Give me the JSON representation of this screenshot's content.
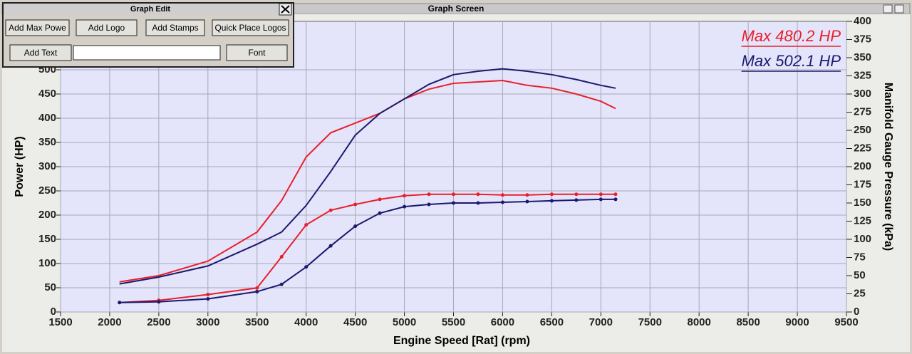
{
  "window": {
    "title": "Graph Screen"
  },
  "dialog": {
    "title": "Graph Edit",
    "buttons": [
      "Add Max Powe",
      "Add Logo",
      "Add Stamps",
      "Quick Place Logos",
      "Add Text",
      "Font"
    ]
  },
  "chart_data": {
    "type": "line",
    "x_label": "Engine Speed [Rat] (rpm)",
    "y_label": "Power (HP)",
    "y2_label": "Manifold Gauge Pressure (kPa)",
    "x": [
      2100,
      2500,
      3000,
      3500,
      3750,
      4000,
      4250,
      4500,
      4750,
      5000,
      5250,
      5500,
      5750,
      6000,
      6250,
      6500,
      6750,
      7000,
      7150
    ],
    "series": [
      {
        "name": "Max 480.2 HP",
        "color": "#e8202a",
        "values": [
          62,
          75,
          105,
          165,
          230,
          320,
          370,
          390,
          410,
          440,
          460,
          472,
          475,
          478,
          468,
          462,
          450,
          435,
          420
        ]
      },
      {
        "name": "Max 502.1 HP",
        "color": "#1a1a6e",
        "values": [
          58,
          72,
          95,
          140,
          165,
          220,
          290,
          365,
          410,
          440,
          470,
          490,
          497,
          502,
          497,
          490,
          480,
          468,
          462
        ]
      },
      {
        "color": "#e8202a",
        "axis": "y2",
        "markers": true,
        "values": [
          13,
          16,
          24,
          33,
          76,
          120,
          140,
          148,
          155,
          160,
          162,
          162,
          162,
          161,
          161,
          162,
          162,
          162,
          162
        ]
      },
      {
        "color": "#1a1a6e",
        "axis": "y2",
        "markers": true,
        "values": [
          13,
          14,
          18,
          28,
          38,
          62,
          91,
          118,
          136,
          145,
          148,
          150,
          150,
          151,
          152,
          153,
          154,
          155,
          155
        ]
      }
    ],
    "xlim": [
      1500,
      9500
    ],
    "xticks": [
      1500,
      2000,
      2500,
      3000,
      3500,
      4000,
      4500,
      5000,
      5500,
      6000,
      6500,
      7000,
      7500,
      8000,
      8500,
      9000,
      9500
    ],
    "ylim": [
      0,
      600
    ],
    "yticks": [
      0,
      50,
      100,
      150,
      200,
      250,
      300,
      350,
      400,
      450,
      500
    ],
    "y2lim": [
      0,
      400
    ],
    "y2ticks": [
      0,
      25,
      50,
      75,
      100,
      125,
      150,
      175,
      200,
      225,
      250,
      275,
      300,
      325,
      350,
      375,
      400
    ],
    "grid": true,
    "legend": "upper right"
  }
}
